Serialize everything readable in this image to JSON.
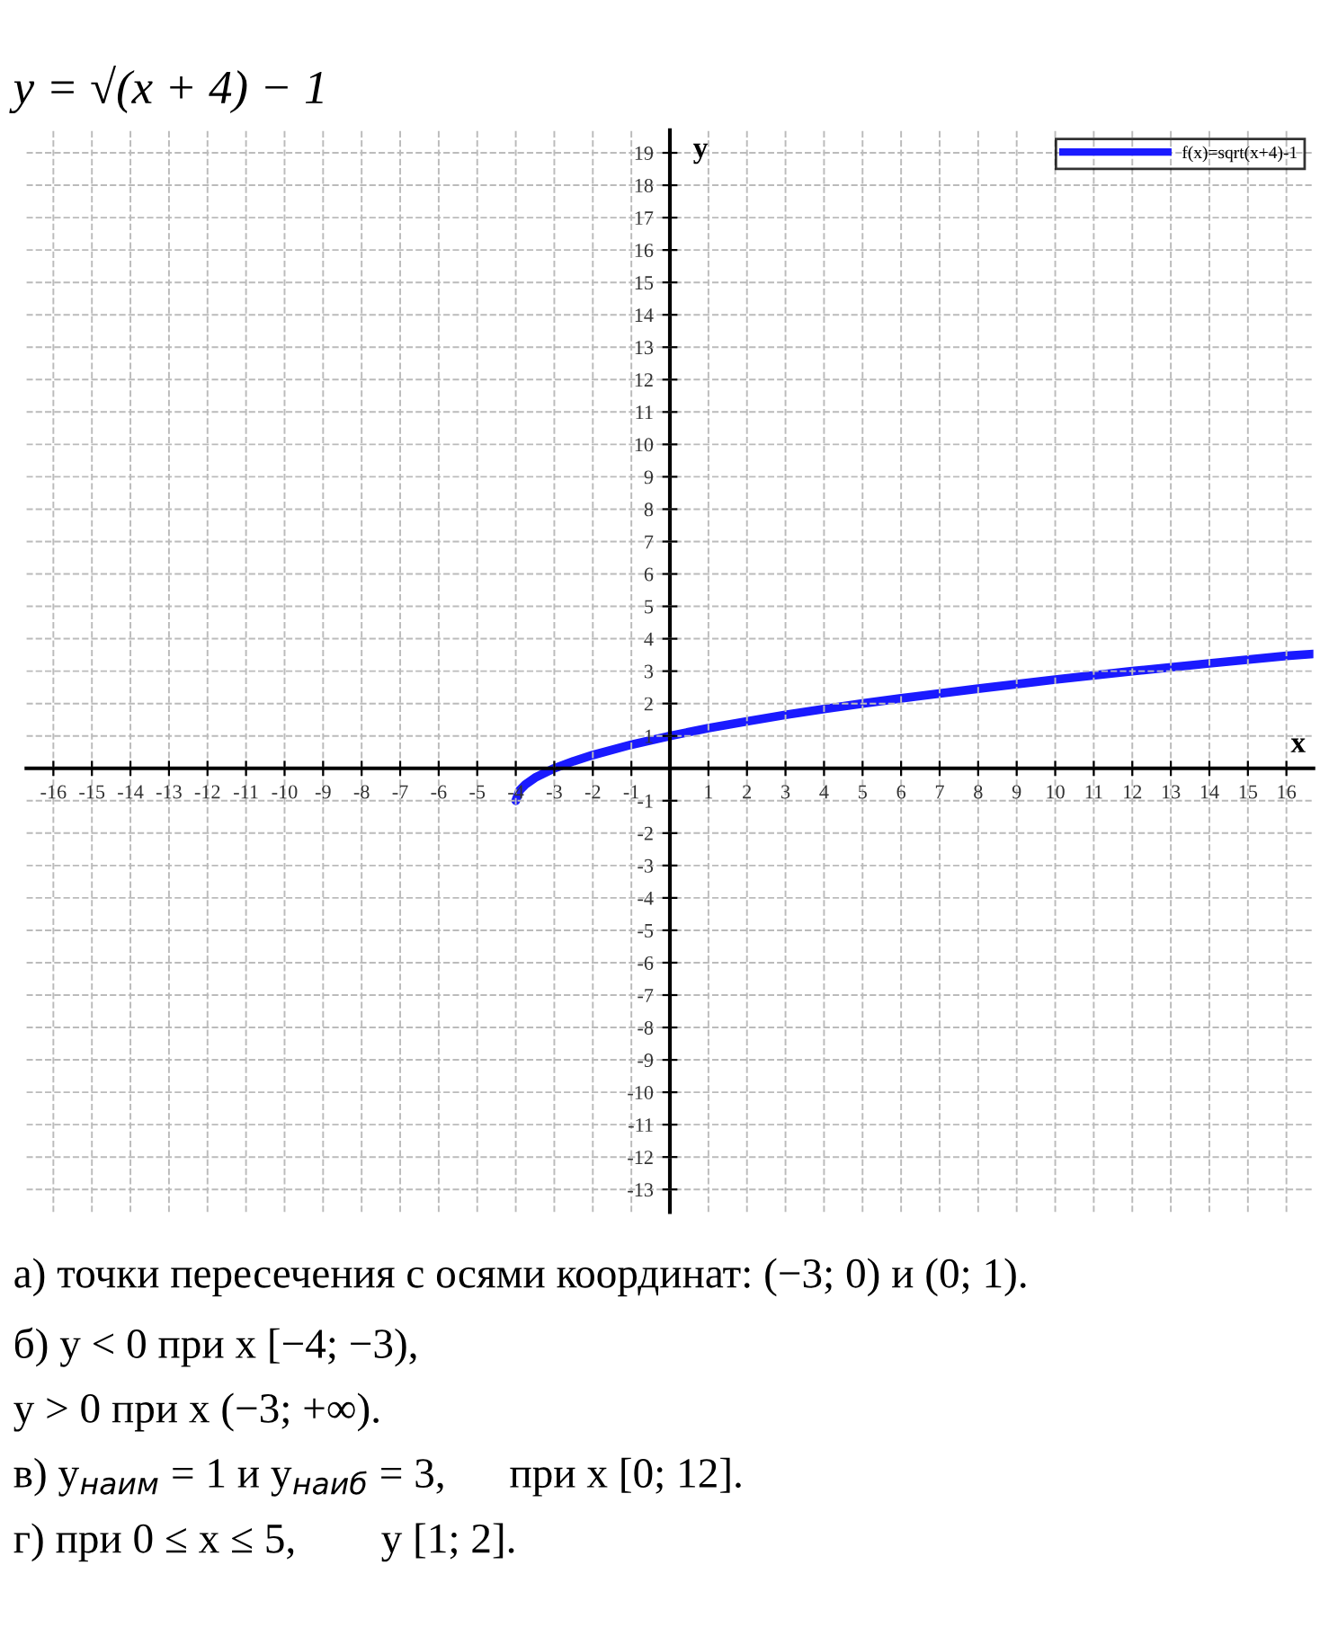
{
  "chart_data": {
    "type": "line",
    "title": "y = √(x + 4) − 1",
    "xlabel": "x",
    "ylabel": "y",
    "series": [
      {
        "name": "f(x)=sqrt(x+4)-1",
        "color": "#1a1aff",
        "x": [
          -4,
          -3.9,
          -3.75,
          -3.5,
          -3,
          -2.5,
          -2,
          -1,
          0,
          1,
          2,
          3,
          4,
          5,
          6,
          8,
          10,
          12,
          14,
          16,
          16.7
        ],
        "values": [
          -1,
          -0.68,
          -0.5,
          -0.29,
          0,
          0.22,
          0.41,
          0.73,
          1,
          1.24,
          1.45,
          1.65,
          1.83,
          2,
          2.16,
          2.46,
          2.74,
          3,
          3.24,
          3.47,
          3.53
        ]
      }
    ],
    "xlim": [
      -16.7,
      16.7
    ],
    "ylim": [
      -13.7,
      19.7
    ],
    "xticks": [
      -16,
      -15,
      -14,
      -13,
      -12,
      -11,
      -10,
      -9,
      -8,
      -7,
      -6,
      -5,
      -4,
      -3,
      -2,
      -1,
      1,
      2,
      3,
      4,
      5,
      6,
      7,
      8,
      9,
      10,
      11,
      12,
      13,
      14,
      15,
      16
    ],
    "yticks": [
      -13,
      -12,
      -11,
      -10,
      -9,
      -8,
      -7,
      -6,
      -5,
      -4,
      -3,
      -2,
      -1,
      1,
      2,
      3,
      4,
      5,
      6,
      7,
      8,
      9,
      10,
      11,
      12,
      13,
      14,
      15,
      16,
      17,
      18,
      19
    ],
    "grid": true,
    "legend": "top right",
    "line_style": "solid",
    "marker": "none",
    "annotations": [
      "а) точки пересечения с осями координат: (−3; 0) и (0; 1).",
      "б) y < 0 при x [−4; −3),",
      "y > 0 при x (−3; +∞).",
      "в) y$_{наим}$ = 1 и y$_{наиб}$ = 3,      при x [0; 12].",
      "г) при 0 ≤ x ≤ 5,        y [1; 2]."
    ]
  }
}
